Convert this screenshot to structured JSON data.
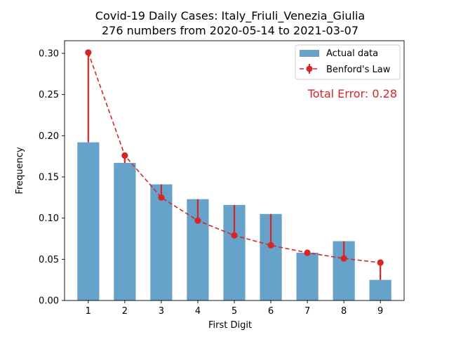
{
  "chart_data": {
    "type": "bar",
    "title_line1": "Covid-19 Daily Cases: Italy_Friuli_Venezia_Giulia",
    "title_line2": "276 numbers from 2020-05-14 to 2021-03-07",
    "xlabel": "First Digit",
    "ylabel": "Frequency",
    "categories": [
      "1",
      "2",
      "3",
      "4",
      "5",
      "6",
      "7",
      "8",
      "9"
    ],
    "xlim": [
      0.35,
      9.65
    ],
    "ylim": [
      0,
      0.3
    ],
    "yticks": [
      "0.00",
      "0.05",
      "0.10",
      "0.15",
      "0.20",
      "0.25",
      "0.30"
    ],
    "series": [
      {
        "name": "Actual data",
        "kind": "bar",
        "color": "#5a9bc6",
        "values": [
          0.192,
          0.167,
          0.141,
          0.123,
          0.116,
          0.105,
          0.058,
          0.072,
          0.025
        ]
      },
      {
        "name": "Benford's Law",
        "kind": "line-errorbar",
        "color": "#d62728",
        "values": [
          0.301,
          0.176,
          0.125,
          0.097,
          0.079,
          0.067,
          0.058,
          0.051,
          0.046
        ]
      }
    ],
    "annotation": "Total Error: 0.28",
    "legend_position": "top-right",
    "grid": false
  }
}
